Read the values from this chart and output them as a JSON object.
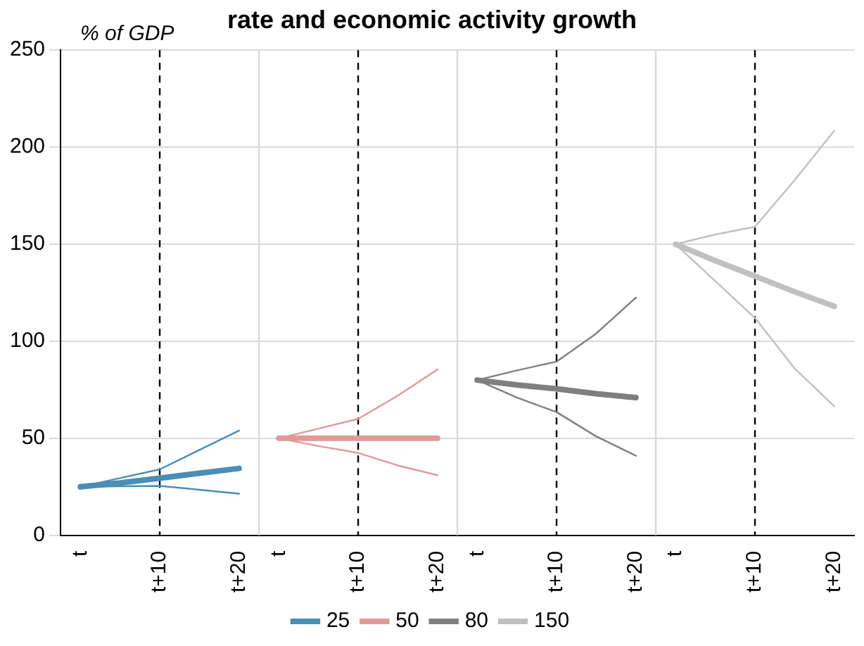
{
  "chart_data": {
    "type": "line",
    "title": "rate and economic activity growth",
    "ylabel": "% of GDP",
    "categories": [
      "t",
      null,
      "t+10",
      null,
      "t+20",
      "t",
      null,
      "t+10",
      null,
      "t+20",
      "t",
      null,
      "t+10",
      null,
      "t+20",
      "t",
      null,
      "t+10",
      null,
      "t+20"
    ],
    "ylim": [
      0,
      250
    ],
    "yticks": [
      0,
      50,
      100,
      150,
      200,
      250
    ],
    "grid": true,
    "legend": "bottom",
    "marker": "none",
    "line_style": "solid",
    "series": [
      {
        "color": "#4a8db5",
        "values": [
          25,
          29.5,
          34,
          44,
          54,
          null,
          null,
          null,
          null,
          null,
          null,
          null,
          null,
          null,
          null,
          null,
          null,
          null,
          null,
          null
        ]
      },
      {
        "color": "#4a8db5",
        "values": [
          25,
          25.3,
          25.5,
          23.5,
          21.5,
          null,
          null,
          null,
          null,
          null,
          null,
          null,
          null,
          null,
          null,
          null,
          null,
          null,
          null,
          null
        ]
      },
      {
        "name": "25",
        "color": "#4a8db5",
        "values": [
          25,
          27,
          29.5,
          32,
          34.5,
          null,
          null,
          null,
          null,
          null,
          null,
          null,
          null,
          null,
          null,
          null,
          null,
          null,
          null,
          null
        ]
      },
      {
        "color": "#e09a9a",
        "values": [
          null,
          null,
          null,
          null,
          null,
          50,
          55,
          60,
          72,
          85.5,
          null,
          null,
          null,
          null,
          null,
          null,
          null,
          null,
          null,
          null
        ]
      },
      {
        "color": "#e09a9a",
        "values": [
          null,
          null,
          null,
          null,
          null,
          50,
          46,
          42.5,
          36,
          31,
          null,
          null,
          null,
          null,
          null,
          null,
          null,
          null,
          null,
          null
        ]
      },
      {
        "name": "50",
        "color": "#e09a9a",
        "values": [
          null,
          null,
          null,
          null,
          null,
          50,
          50,
          50,
          50,
          50,
          null,
          null,
          null,
          null,
          null,
          null,
          null,
          null,
          null,
          null
        ]
      },
      {
        "color": "#7f7f7f",
        "values": [
          null,
          null,
          null,
          null,
          null,
          null,
          null,
          null,
          null,
          null,
          80,
          85,
          89.5,
          104,
          122.5,
          null,
          null,
          null,
          null,
          null
        ]
      },
      {
        "color": "#7f7f7f",
        "values": [
          null,
          null,
          null,
          null,
          null,
          null,
          null,
          null,
          null,
          null,
          80,
          71,
          63.5,
          51,
          41,
          null,
          null,
          null,
          null,
          null
        ]
      },
      {
        "name": "80",
        "color": "#7f7f7f",
        "values": [
          null,
          null,
          null,
          null,
          null,
          null,
          null,
          null,
          null,
          null,
          80,
          77.5,
          75.5,
          73,
          71,
          null,
          null,
          null,
          null,
          null
        ]
      },
      {
        "color": "#c0c0c0",
        "values": [
          null,
          null,
          null,
          null,
          null,
          null,
          null,
          null,
          null,
          null,
          null,
          null,
          null,
          null,
          null,
          150,
          155,
          159,
          183,
          208.5
        ]
      },
      {
        "color": "#c0c0c0",
        "values": [
          null,
          null,
          null,
          null,
          null,
          null,
          null,
          null,
          null,
          null,
          null,
          null,
          null,
          null,
          null,
          150,
          131,
          112,
          86,
          66.5
        ]
      },
      {
        "name": "150",
        "color": "#c0c0c0",
        "values": [
          null,
          null,
          null,
          null,
          null,
          null,
          null,
          null,
          null,
          null,
          null,
          null,
          null,
          null,
          null,
          150,
          141.5,
          133.5,
          125.5,
          118
        ]
      }
    ]
  }
}
